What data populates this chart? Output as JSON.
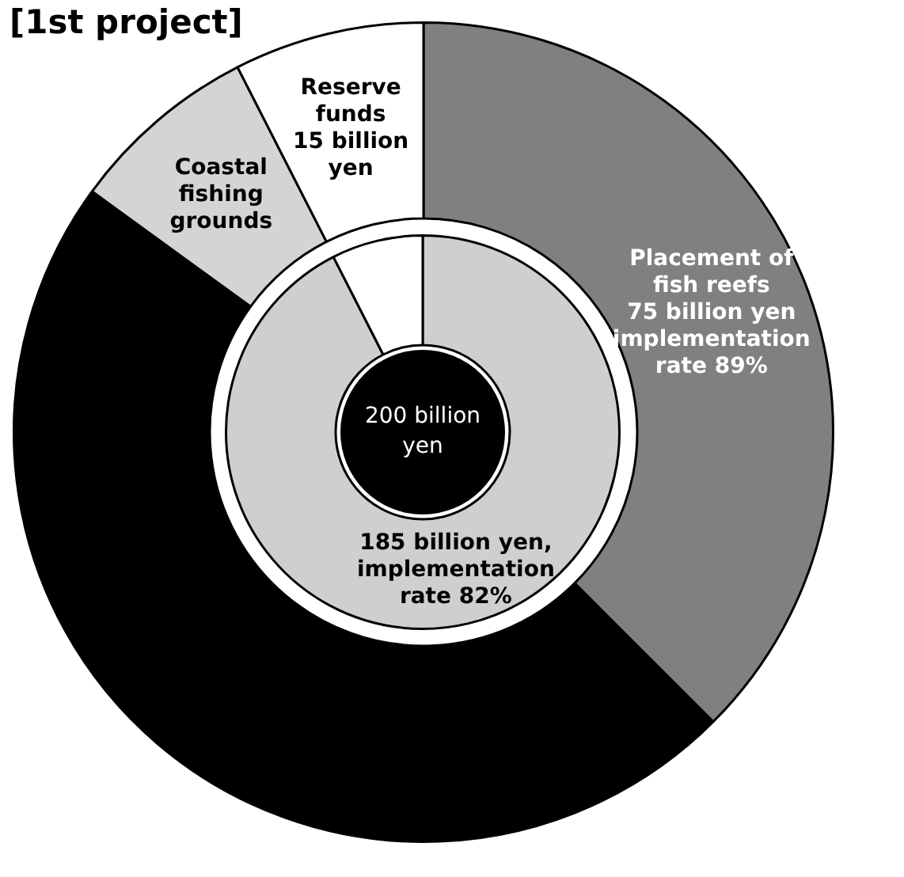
{
  "chart_data": [
    {
      "type": "donut",
      "title": "[1st project]",
      "categories": [
        "Placement of fish reefs",
        null,
        "Coastal fishing grounds",
        "Reserve funds"
      ],
      "values": [
        75,
        95,
        15,
        15
      ],
      "colors": [
        "#808080",
        "#000000",
        "#d4d4d4",
        "#ffffff"
      ],
      "value_labels": [
        "75 billion yen",
        null,
        null,
        "15 billion yen"
      ],
      "annotations": [
        "implementation rate 89%"
      ],
      "legend": false
    },
    {
      "type": "donut",
      "categories": [
        null,
        null
      ],
      "values": [
        185,
        15
      ],
      "colors": [
        "#cfcfcf",
        "#ffffff"
      ],
      "value_labels": [
        "185 billion yen,",
        null
      ],
      "annotations": [
        "implementation rate 82%",
        "200 billion yen"
      ],
      "legend": false
    }
  ]
}
